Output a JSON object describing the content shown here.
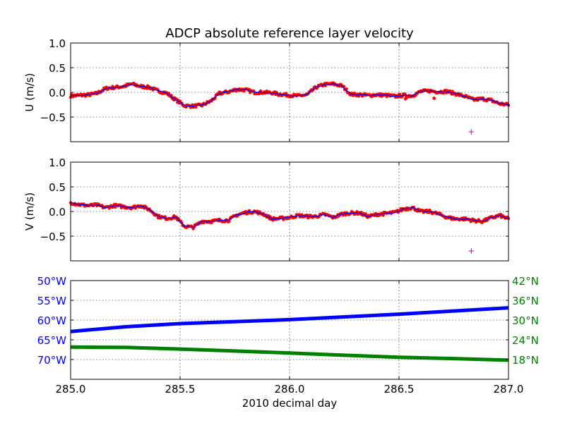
{
  "title": "ADCP absolute reference layer velocity",
  "chart_data": [
    {
      "type": "line",
      "ylabel": "U (m/s)",
      "ylim": [
        -1.0,
        1.0
      ],
      "xlim": [
        285.0,
        287.0
      ],
      "yticks": [
        {
          "v": 1.0,
          "label": "1.0"
        },
        {
          "v": 0.5,
          "label": "0.5"
        },
        {
          "v": 0.0,
          "label": "0.0"
        },
        {
          "v": -0.5,
          "label": "−0.5"
        }
      ],
      "grid": true,
      "colors": {
        "raw": "#ff0000",
        "smoothed": "#0000ff",
        "marker": "#bf00bf"
      },
      "series": [
        {
          "x": [
            285.0,
            285.04,
            285.08,
            285.12,
            285.16,
            285.2,
            285.24,
            285.28,
            285.32,
            285.36,
            285.4,
            285.44,
            285.48,
            285.52,
            285.56,
            285.6,
            285.64,
            285.68,
            285.72,
            285.76,
            285.8,
            285.84,
            285.88,
            285.92,
            285.96,
            286.0,
            286.04,
            286.08,
            286.12,
            286.16,
            286.2,
            286.24,
            286.28,
            286.32,
            286.36,
            286.4,
            286.44,
            286.48,
            286.52,
            286.56,
            286.6,
            286.64,
            286.68,
            286.72,
            286.76,
            286.8,
            286.84,
            286.88,
            286.92,
            286.96,
            287.0
          ],
          "values": [
            -0.07,
            -0.06,
            -0.05,
            -0.02,
            0.08,
            0.1,
            0.12,
            0.17,
            0.12,
            0.1,
            0.03,
            -0.02,
            -0.15,
            -0.27,
            -0.28,
            -0.26,
            -0.18,
            -0.02,
            0.01,
            0.06,
            0.05,
            0.0,
            0.0,
            -0.01,
            -0.04,
            -0.06,
            -0.07,
            -0.05,
            0.1,
            0.16,
            0.17,
            0.13,
            -0.04,
            -0.05,
            -0.06,
            -0.05,
            -0.06,
            -0.08,
            -0.06,
            -0.07,
            0.02,
            0.03,
            0.01,
            0.02,
            -0.03,
            -0.08,
            -0.15,
            -0.13,
            -0.16,
            -0.23,
            -0.25
          ]
        }
      ],
      "markers": [
        {
          "x": 286.83,
          "y": -0.8
        }
      ]
    },
    {
      "type": "line",
      "ylabel": "V (m/s)",
      "ylim": [
        -1.0,
        1.0
      ],
      "xlim": [
        285.0,
        287.0
      ],
      "yticks": [
        {
          "v": 1.0,
          "label": "1.0"
        },
        {
          "v": 0.5,
          "label": "0.5"
        },
        {
          "v": 0.0,
          "label": "0.0"
        },
        {
          "v": -0.5,
          "label": "−0.5"
        }
      ],
      "grid": true,
      "colors": {
        "raw": "#ff0000",
        "smoothed": "#0000ff",
        "marker": "#bf00bf"
      },
      "series": [
        {
          "x": [
            285.0,
            285.04,
            285.08,
            285.12,
            285.16,
            285.2,
            285.24,
            285.28,
            285.32,
            285.36,
            285.4,
            285.44,
            285.48,
            285.52,
            285.56,
            285.6,
            285.64,
            285.68,
            285.72,
            285.76,
            285.8,
            285.84,
            285.88,
            285.92,
            285.96,
            286.0,
            286.04,
            286.08,
            286.12,
            286.16,
            286.2,
            286.24,
            286.28,
            286.32,
            286.36,
            286.4,
            286.44,
            286.48,
            286.52,
            286.56,
            286.6,
            286.64,
            286.68,
            286.72,
            286.76,
            286.8,
            286.84,
            286.88,
            286.92,
            286.96,
            287.0
          ],
          "values": [
            0.18,
            0.14,
            0.12,
            0.13,
            0.08,
            0.12,
            0.1,
            0.08,
            0.12,
            0.04,
            -0.1,
            -0.14,
            -0.11,
            -0.3,
            -0.32,
            -0.2,
            -0.2,
            -0.18,
            -0.18,
            -0.07,
            -0.02,
            0.0,
            -0.05,
            -0.15,
            -0.14,
            -0.12,
            -0.08,
            -0.1,
            -0.1,
            -0.06,
            -0.12,
            -0.05,
            -0.03,
            -0.03,
            -0.1,
            -0.06,
            -0.04,
            -0.02,
            0.05,
            0.08,
            0.0,
            0.0,
            -0.05,
            -0.12,
            -0.15,
            -0.15,
            -0.18,
            -0.2,
            -0.13,
            -0.08,
            -0.15
          ]
        }
      ],
      "markers": [
        {
          "x": 286.83,
          "y": -0.8
        }
      ]
    },
    {
      "type": "line",
      "xlabel": "2010 decimal day",
      "xlim": [
        285.0,
        287.0
      ],
      "xticks": [
        {
          "v": 285.0,
          "label": "285.0"
        },
        {
          "v": 285.5,
          "label": "285.5"
        },
        {
          "v": 286.0,
          "label": "286.0"
        },
        {
          "v": 286.5,
          "label": "286.5"
        },
        {
          "v": 287.0,
          "label": "287.0"
        }
      ],
      "grid": true,
      "left_axis": {
        "quantity": "longitude",
        "ylim": [
          -75.0,
          -50.0
        ],
        "color": "#0000ff",
        "yticks": [
          {
            "v": -50,
            "label": "50°W"
          },
          {
            "v": -55,
            "label": "55°W"
          },
          {
            "v": -60,
            "label": "60°W"
          },
          {
            "v": -65,
            "label": "65°W"
          },
          {
            "v": -70,
            "label": "70°W"
          }
        ]
      },
      "right_axis": {
        "quantity": "latitude",
        "ylim": [
          12.0,
          42.0
        ],
        "color": "#008000",
        "yticks": [
          {
            "v": 42,
            "label": "42°N"
          },
          {
            "v": 36,
            "label": "36°N"
          },
          {
            "v": 30,
            "label": "30°N"
          },
          {
            "v": 24,
            "label": "24°N"
          },
          {
            "v": 18,
            "label": "18°N"
          }
        ]
      },
      "series": [
        {
          "axis": "left",
          "color": "#0000ff",
          "x": [
            285.0,
            285.25,
            285.5,
            285.75,
            286.0,
            286.25,
            286.5,
            286.75,
            287.0
          ],
          "values": [
            -62.9,
            -61.7,
            -60.9,
            -60.4,
            -59.9,
            -59.2,
            -58.5,
            -57.7,
            -56.9
          ]
        },
        {
          "axis": "right",
          "color": "#008000",
          "x": [
            285.0,
            285.25,
            285.5,
            285.75,
            286.0,
            286.25,
            286.5,
            286.75,
            287.0
          ],
          "values": [
            21.8,
            21.7,
            21.2,
            20.6,
            20.0,
            19.3,
            18.7,
            18.3,
            17.8
          ]
        }
      ]
    }
  ]
}
